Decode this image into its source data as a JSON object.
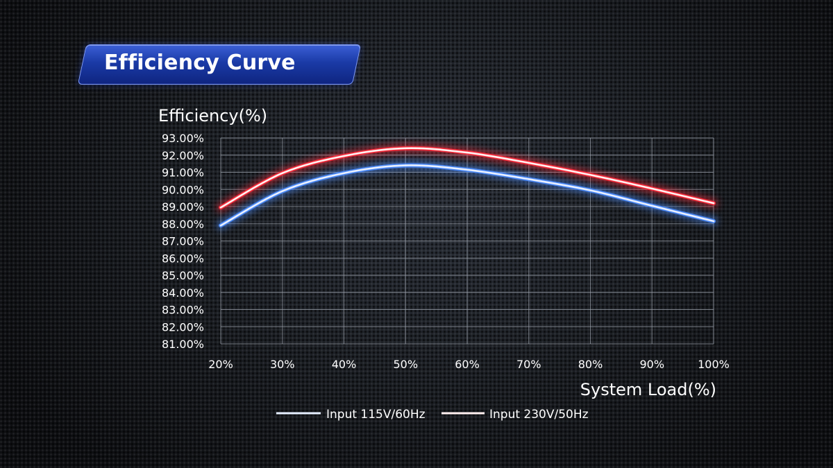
{
  "banner": {
    "title": "Efficiency Curve"
  },
  "chart_data": {
    "type": "line",
    "title": "",
    "ylabel": "Efficiency(%)",
    "xlabel": "System Load(%)",
    "x": [
      20,
      30,
      40,
      50,
      60,
      70,
      80,
      90,
      100
    ],
    "x_tick_labels": [
      "20%",
      "30%",
      "40%",
      "50%",
      "60%",
      "70%",
      "80%",
      "90%",
      "100%"
    ],
    "ylim": [
      81,
      93
    ],
    "y_tick_labels": [
      "93.00%",
      "92.00%",
      "91.00%",
      "90.00%",
      "89.00%",
      "88.00%",
      "87.00%",
      "86.00%",
      "85.00%",
      "84.00%",
      "83.00%",
      "82.00%",
      "81.00%"
    ],
    "grid": true,
    "legend_position": "bottom",
    "series": [
      {
        "name": "Input 115V/60Hz",
        "color": "#4a8cff",
        "values": [
          87.9,
          89.9,
          90.95,
          91.4,
          91.15,
          90.6,
          89.95,
          89.05,
          88.15
        ]
      },
      {
        "name": "Input 230V/50Hz",
        "color": "#ff2a3a",
        "values": [
          88.95,
          90.95,
          91.95,
          92.4,
          92.15,
          91.55,
          90.85,
          90.05,
          89.2
        ]
      }
    ]
  }
}
